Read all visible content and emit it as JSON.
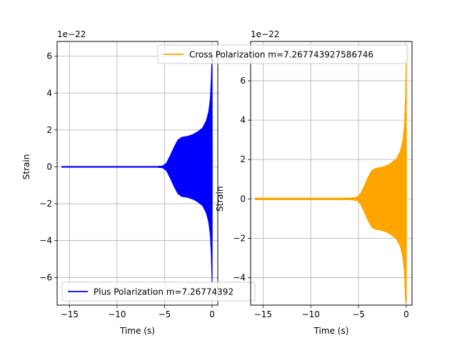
{
  "chart_data": [
    {
      "type": "line",
      "title": "",
      "xlabel": "Time (s)",
      "ylabel": "Strain",
      "offset_text": "1e−22",
      "xlim": [
        -16.3,
        0.6
      ],
      "ylim": [
        -7.5e-22,
        6.8e-22
      ],
      "xticks": [
        -15,
        -10,
        -5,
        0
      ],
      "xtick_labels": [
        "−15",
        "−10",
        "−5",
        "0"
      ],
      "yticks": [
        -6e-22,
        -4e-22,
        -2e-22,
        0,
        2e-22,
        4e-22,
        6e-22
      ],
      "ytick_labels": [
        "−6",
        "−4",
        "−2",
        "0",
        "2",
        "4",
        "6"
      ],
      "grid": true,
      "legend_position": "lower-left",
      "series": [
        {
          "name": "Plus Polarization m=7.26774392",
          "color": "#0000ff",
          "envelope": {
            "t": [
              -15.8,
              -5.8,
              -5.2,
              -4.8,
              -4.4,
              -4.0,
              -3.6,
              -3.2,
              -2.6,
              -2.0,
              -1.5,
              -1.0,
              -0.6,
              -0.35,
              -0.18,
              -0.08,
              0.0,
              0.02
            ],
            "amplitude": [
              2e-24,
              2e-24,
              5e-24,
              2e-23,
              6e-23,
              1.05e-22,
              1.45e-22,
              1.6e-22,
              1.65e-22,
              1.75e-22,
              1.9e-22,
              2.1e-22,
              2.5e-22,
              3e-22,
              3.7e-22,
              4.8e-22,
              6.2e-22,
              0.0
            ]
          },
          "lower_peak": -6.3e-22
        }
      ]
    },
    {
      "type": "line",
      "title": "",
      "xlabel": "Time (s)",
      "ylabel": "Strain",
      "offset_text": "1e−22",
      "xlim": [
        -16.3,
        0.6
      ],
      "ylim": [
        -5.4e-22,
        8e-22
      ],
      "xticks": [
        -15,
        -10,
        -5,
        0
      ],
      "xtick_labels": [
        "−15",
        "−10",
        "−5",
        "0"
      ],
      "yticks": [
        -4e-22,
        -2e-22,
        0,
        2e-22,
        4e-22,
        6e-22
      ],
      "ytick_labels": [
        "−4",
        "−2",
        "0",
        "2",
        "4",
        "6"
      ],
      "grid": true,
      "legend_position": "upper-right",
      "series": [
        {
          "name": "Cross Polarization m=7.267743927586746",
          "color": "#ffa500",
          "envelope": {
            "t": [
              -15.8,
              -6.0,
              -5.2,
              -4.8,
              -4.4,
              -4.0,
              -3.6,
              -3.2,
              -2.6,
              -2.0,
              -1.5,
              -1.0,
              -0.6,
              -0.35,
              -0.18,
              -0.08,
              0.0,
              0.02
            ],
            "amplitude": [
              4e-24,
              4e-24,
              8e-24,
              2.5e-23,
              6.5e-23,
              1.1e-22,
              1.45e-22,
              1.55e-22,
              1.6e-22,
              1.7e-22,
              1.85e-22,
              2.05e-22,
              2.45e-22,
              3e-22,
              3.8e-22,
              5.2e-22,
              7.6e-22,
              0.0
            ]
          },
          "lower_peak": -5.3e-22
        }
      ]
    }
  ]
}
